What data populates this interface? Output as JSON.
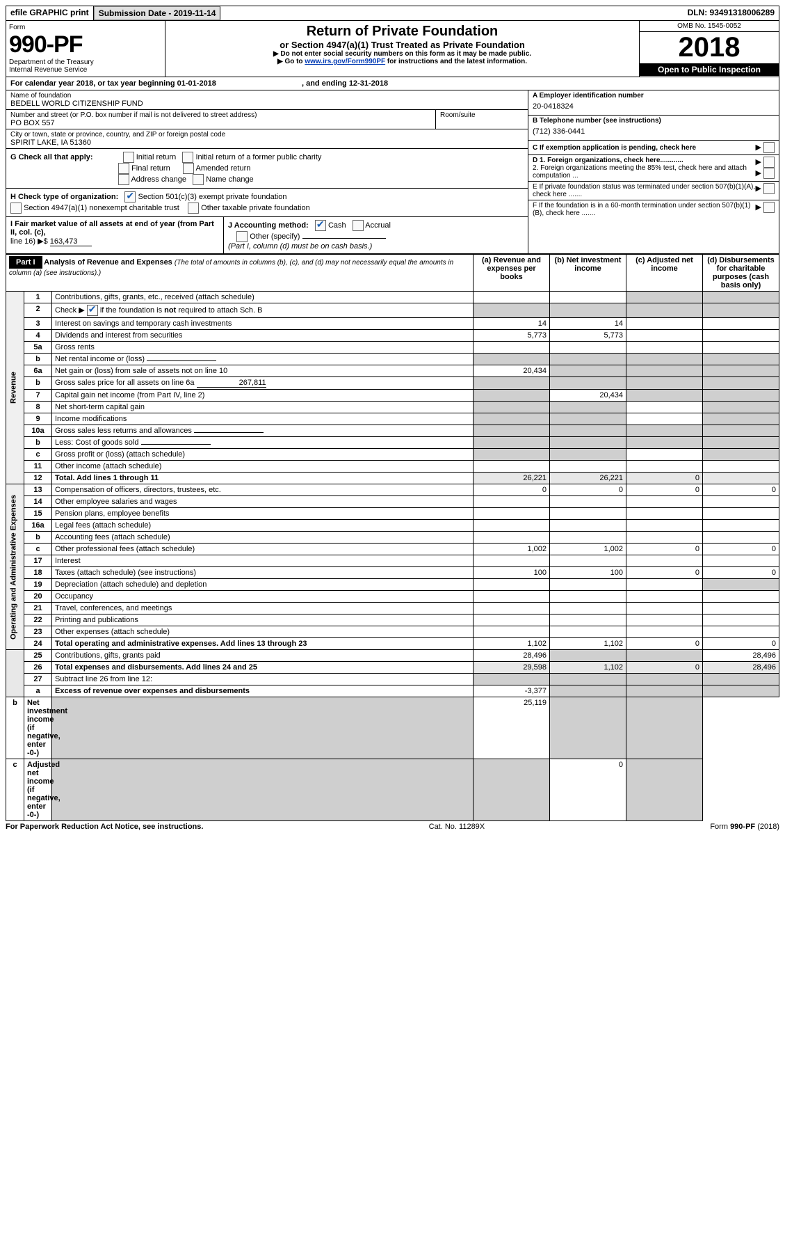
{
  "header_bar": {
    "efile": "efile GRAPHIC print",
    "submission": "Submission Date - 2019-11-14",
    "dln": "DLN: 93491318006289"
  },
  "form_head": {
    "form_word": "Form",
    "form_no": "990-PF",
    "dept": "Department of the Treasury",
    "irs": "Internal Revenue Service",
    "title": "Return of Private Foundation",
    "subtitle": "or Section 4947(a)(1) Trust Treated as Private Foundation",
    "note1": "▶ Do not enter social security numbers on this form as it may be made public.",
    "note2_pre": "▶ Go to ",
    "note2_link": "www.irs.gov/Form990PF",
    "note2_post": " for instructions and the latest information.",
    "omb": "OMB No. 1545-0052",
    "year": "2018",
    "inspection": "Open to Public Inspection"
  },
  "cal_year": "For calendar year 2018, or tax year beginning 01-01-2018",
  "cal_year_end": ", and ending 12-31-2018",
  "foundation": {
    "name_lbl": "Name of foundation",
    "name": "BEDELL WORLD CITIZENSHIP FUND",
    "addr_lbl": "Number and street (or P.O. box number if mail is not delivered to street address)",
    "addr": "PO BOX 557",
    "room_lbl": "Room/suite",
    "city_lbl": "City or town, state or province, country, and ZIP or foreign postal code",
    "city": "SPIRIT LAKE, IA  51360"
  },
  "right_info": {
    "A_lbl": "A Employer identification number",
    "A_val": "20-0418324",
    "B_lbl": "B Telephone number (see instructions)",
    "B_val": "(712) 336-0441",
    "C_lbl": "C If exemption application is pending, check here",
    "D1": "D 1. Foreign organizations, check here............",
    "D2": "2. Foreign organizations meeting the 85% test, check here and attach computation ...",
    "E": "E  If private foundation status was terminated under section 507(b)(1)(A), check here .......",
    "F": "F  If the foundation is in a 60-month termination under section 507(b)(1)(B), check here ......."
  },
  "G": {
    "lbl": "G Check all that apply:",
    "opts": [
      "Initial return",
      "Initial return of a former public charity",
      "Final return",
      "Amended return",
      "Address change",
      "Name change"
    ]
  },
  "H": {
    "lbl": "H Check type of organization:",
    "o1": "Section 501(c)(3) exempt private foundation",
    "o2": "Section 4947(a)(1) nonexempt charitable trust",
    "o3": "Other taxable private foundation"
  },
  "I": {
    "lbl": "I Fair market value of all assets at end of year (from Part II, col. (c),",
    "line": "line 16) ▶$",
    "val": "163,473"
  },
  "J": {
    "lbl": "J Accounting method:",
    "cash": "Cash",
    "accrual": "Accrual",
    "other": "Other (specify)",
    "note": "(Part I, column (d) must be on cash basis.)"
  },
  "part1": {
    "label": "Part I",
    "title": "Analysis of Revenue and Expenses",
    "paren": "(The total of amounts in columns (b), (c), and (d) may not necessarily equal the amounts in column (a) (see instructions).)",
    "cols": {
      "a": "(a)  Revenue and expenses per books",
      "b": "(b)  Net investment income",
      "c": "(c)  Adjusted net income",
      "d": "(d)  Disbursements for charitable purposes (cash basis only)"
    }
  },
  "sections": {
    "rev": "Revenue",
    "exp": "Operating and Administrative Expenses"
  },
  "lines": [
    {
      "n": "1",
      "t": "Contributions, gifts, grants, etc., received (attach schedule)",
      "a": "",
      "b": "",
      "bg": "",
      "cg": "1",
      "dg": "1"
    },
    {
      "n": "2",
      "t": "Check ▶ ☑ if the foundation is not required to attach Sch. B",
      "nodots": 1,
      "ag": "1",
      "bg": "1",
      "cg": "1",
      "dg": "1"
    },
    {
      "n": "3",
      "t": "Interest on savings and temporary cash investments",
      "a": "14",
      "b": "14"
    },
    {
      "n": "4",
      "t": "Dividends and interest from securities",
      "a": "5,773",
      "b": "5,773"
    },
    {
      "n": "5a",
      "t": "Gross rents"
    },
    {
      "n": "b",
      "t": "Net rental income or (loss)",
      "inline": 1,
      "ag": "1",
      "bg": "1",
      "cg": "1",
      "dg": "1"
    },
    {
      "n": "6a",
      "t": "Net gain or (loss) from sale of assets not on line 10",
      "a": "20,434",
      "bg": "1",
      "cg": "1",
      "dg": "1"
    },
    {
      "n": "b",
      "t": "Gross sales price for all assets on line 6a",
      "inline": 1,
      "ival": "267,811",
      "ag": "1",
      "bg": "1",
      "cg": "1",
      "dg": "1"
    },
    {
      "n": "7",
      "t": "Capital gain net income (from Part IV, line 2)",
      "ag": "1",
      "b": "20,434",
      "cg": "1",
      "dg": "1"
    },
    {
      "n": "8",
      "t": "Net short-term capital gain",
      "ag": "1",
      "bg": "1",
      "dg": "1"
    },
    {
      "n": "9",
      "t": "Income modifications",
      "ag": "1",
      "bg": "1",
      "dg": "1"
    },
    {
      "n": "10a",
      "t": "Gross sales less returns and allowances",
      "inline": 1,
      "ag": "1",
      "bg": "1",
      "cg": "1",
      "dg": "1"
    },
    {
      "n": "b",
      "t": "Less: Cost of goods sold",
      "inline": 1,
      "ag": "1",
      "bg": "1",
      "cg": "1",
      "dg": "1"
    },
    {
      "n": "c",
      "t": "Gross profit or (loss) (attach schedule)",
      "ag": "1",
      "bg": "1",
      "dg": "1"
    },
    {
      "n": "11",
      "t": "Other income (attach schedule)"
    },
    {
      "n": "12",
      "t": "Total. Add lines 1 through 11",
      "bold": 1,
      "a": "26,221",
      "b": "26,221",
      "c": "0",
      "dg": "1",
      "shade": "1"
    },
    {
      "n": "13",
      "t": "Compensation of officers, directors, trustees, etc.",
      "a": "0",
      "b": "0",
      "c": "0",
      "d": "0"
    },
    {
      "n": "14",
      "t": "Other employee salaries and wages"
    },
    {
      "n": "15",
      "t": "Pension plans, employee benefits"
    },
    {
      "n": "16a",
      "t": "Legal fees (attach schedule)"
    },
    {
      "n": "b",
      "t": "Accounting fees (attach schedule)"
    },
    {
      "n": "c",
      "t": "Other professional fees (attach schedule)",
      "a": "1,002",
      "b": "1,002",
      "c": "0",
      "d": "0"
    },
    {
      "n": "17",
      "t": "Interest"
    },
    {
      "n": "18",
      "t": "Taxes (attach schedule) (see instructions)",
      "a": "100",
      "b": "100",
      "c": "0",
      "d": "0"
    },
    {
      "n": "19",
      "t": "Depreciation (attach schedule) and depletion",
      "dg": "1"
    },
    {
      "n": "20",
      "t": "Occupancy"
    },
    {
      "n": "21",
      "t": "Travel, conferences, and meetings"
    },
    {
      "n": "22",
      "t": "Printing and publications"
    },
    {
      "n": "23",
      "t": "Other expenses (attach schedule)"
    },
    {
      "n": "24",
      "t": "Total operating and administrative expenses. Add lines 13 through 23",
      "bold": 1,
      "a": "1,102",
      "b": "1,102",
      "c": "0",
      "d": "0"
    },
    {
      "n": "25",
      "t": "Contributions, gifts, grants paid",
      "a": "28,496",
      "bg": "1",
      "cg": "1",
      "d": "28,496"
    },
    {
      "n": "26",
      "t": "Total expenses and disbursements. Add lines 24 and 25",
      "bold": 1,
      "a": "29,598",
      "b": "1,102",
      "c": "0",
      "d": "28,496",
      "shade": "1"
    },
    {
      "n": "27",
      "t": "Subtract line 26 from line 12:",
      "ag": "1",
      "bg": "1",
      "cg": "1",
      "dg": "1"
    },
    {
      "n": "a",
      "t": "Excess of revenue over expenses and disbursements",
      "bold": 1,
      "a": "-3,377",
      "bg": "1",
      "cg": "1",
      "dg": "1"
    },
    {
      "n": "b",
      "t": "Net investment income (if negative, enter -0-)",
      "bold": 1,
      "ag": "1",
      "b": "25,119",
      "cg": "1",
      "dg": "1"
    },
    {
      "n": "c",
      "t": "Adjusted net income (if negative, enter -0-)",
      "bold": 1,
      "ag": "1",
      "bg": "1",
      "c": "0",
      "dg": "1"
    }
  ],
  "footer": {
    "left": "For Paperwork Reduction Act Notice, see instructions.",
    "mid": "Cat. No. 11289X",
    "right": "Form 990-PF (2018)"
  }
}
